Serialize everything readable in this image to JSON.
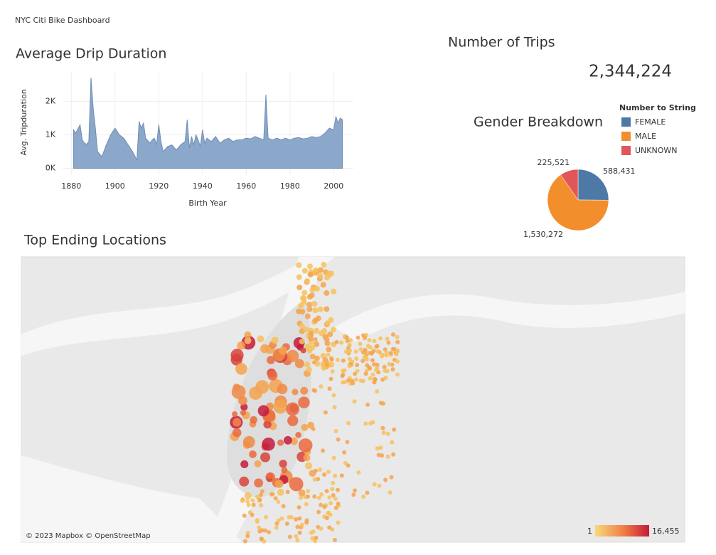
{
  "header": {
    "title": "NYC Citi Bike Dashboard"
  },
  "kpi": {
    "title": "Number of Trips",
    "value": "2,344,224"
  },
  "chart_data": [
    {
      "type": "area",
      "title": "Average Drip Duration",
      "x_label": "Birth Year",
      "y_label": "Avg. Tripduration",
      "color": "#8ba7c9",
      "x": [
        1881,
        1882,
        1884,
        1885,
        1886,
        1887,
        1888,
        1889,
        1890,
        1891,
        1892,
        1894,
        1896,
        1898,
        1900,
        1902,
        1904,
        1906,
        1908,
        1910,
        1911,
        1912,
        1913,
        1914,
        1916,
        1917,
        1918,
        1919,
        1920,
        1921,
        1922,
        1924,
        1926,
        1928,
        1930,
        1932,
        1933,
        1934,
        1935,
        1936,
        1937,
        1938,
        1939,
        1940,
        1941,
        1942,
        1944,
        1946,
        1948,
        1950,
        1952,
        1954,
        1956,
        1958,
        1960,
        1962,
        1964,
        1966,
        1968,
        1969,
        1970,
        1972,
        1974,
        1976,
        1978,
        1980,
        1982,
        1984,
        1986,
        1988,
        1990,
        1992,
        1994,
        1996,
        1998,
        2000,
        2001,
        2002,
        2003,
        2004
      ],
      "values": [
        1150,
        1050,
        1300,
        850,
        750,
        720,
        800,
        2700,
        1800,
        1200,
        500,
        350,
        700,
        1000,
        1200,
        1000,
        900,
        700,
        500,
        250,
        1400,
        1200,
        1350,
        900,
        750,
        850,
        900,
        700,
        1300,
        800,
        500,
        650,
        700,
        550,
        700,
        800,
        1450,
        600,
        950,
        700,
        1000,
        850,
        650,
        1150,
        750,
        900,
        800,
        950,
        750,
        850,
        900,
        800,
        850,
        850,
        900,
        880,
        950,
        900,
        850,
        2200,
        900,
        850,
        900,
        850,
        900,
        850,
        900,
        920,
        880,
        900,
        950,
        920,
        950,
        1050,
        1200,
        1150,
        1550,
        1350,
        1500,
        1450
      ],
      "xlim": [
        1876,
        2009
      ],
      "xticks": [
        1880,
        1900,
        1920,
        1940,
        1960,
        1980,
        2000
      ],
      "ylim": [
        -200,
        2900
      ],
      "yticks": [
        {
          "value": 0,
          "label": "0K"
        },
        {
          "value": 1000,
          "label": "1K"
        },
        {
          "value": 2000,
          "label": "2K"
        }
      ],
      "grid": true
    },
    {
      "type": "pie",
      "title": "Gender Breakdown",
      "legend_title": "Number to String",
      "categories": [
        "FEMALE",
        "MALE",
        "UNKNOWN"
      ],
      "colors": [
        "#4e79a7",
        "#f28e2b",
        "#e15759"
      ],
      "values": [
        588431,
        1530272,
        225521
      ],
      "value_labels": [
        "588,431",
        "1,530,272",
        "225,521"
      ]
    },
    {
      "type": "map",
      "title": "Top Ending Locations",
      "credit": "© 2023 Mapbox © OpenStreetMap",
      "color_range": [
        1,
        16455
      ],
      "color_range_labels": [
        "1",
        "16,455"
      ],
      "colors": [
        "#f9d87b",
        "#c41a3b"
      ]
    }
  ]
}
